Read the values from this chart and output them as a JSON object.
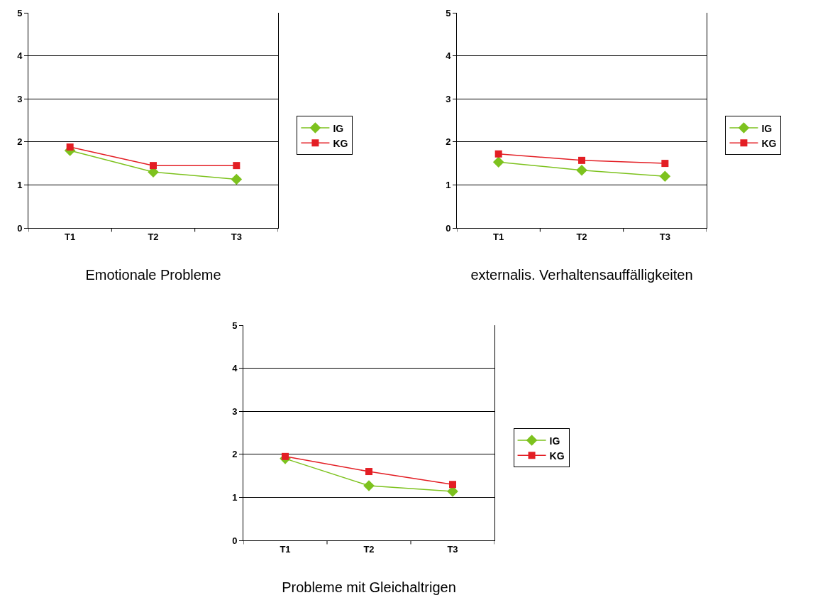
{
  "chart_data": [
    {
      "type": "line",
      "xlabel": "Emotionale Probleme",
      "categories": [
        "T1",
        "T2",
        "T3"
      ],
      "ylim": [
        0,
        5
      ],
      "yticks": [
        0,
        1,
        2,
        3,
        4,
        5
      ],
      "grid": "y",
      "legend": "right",
      "series": [
        {
          "name": "IG",
          "color": "#7dc21e",
          "marker": "diamond",
          "values": [
            1.8,
            1.3,
            1.13
          ]
        },
        {
          "name": "KG",
          "color": "#e31e24",
          "marker": "square",
          "values": [
            1.88,
            1.45,
            1.45
          ]
        }
      ]
    },
    {
      "type": "line",
      "xlabel": "externalis. Verhaltensauffälligkeiten",
      "categories": [
        "T1",
        "T2",
        "T3"
      ],
      "ylim": [
        0,
        5
      ],
      "yticks": [
        0,
        1,
        2,
        3,
        4,
        5
      ],
      "grid": "y",
      "legend": "right",
      "series": [
        {
          "name": "IG",
          "color": "#7dc21e",
          "marker": "diamond",
          "values": [
            1.53,
            1.34,
            1.2
          ]
        },
        {
          "name": "KG",
          "color": "#e31e24",
          "marker": "square",
          "values": [
            1.72,
            1.57,
            1.5
          ]
        }
      ]
    },
    {
      "type": "line",
      "xlabel": "Probleme mit Gleichaltrigen",
      "categories": [
        "T1",
        "T2",
        "T3"
      ],
      "ylim": [
        0,
        5
      ],
      "yticks": [
        0,
        1,
        2,
        3,
        4,
        5
      ],
      "grid": "y",
      "legend": "right",
      "series": [
        {
          "name": "IG",
          "color": "#7dc21e",
          "marker": "diamond",
          "values": [
            1.9,
            1.27,
            1.14
          ]
        },
        {
          "name": "KG",
          "color": "#e31e24",
          "marker": "square",
          "values": [
            1.95,
            1.6,
            1.3
          ]
        }
      ]
    }
  ]
}
